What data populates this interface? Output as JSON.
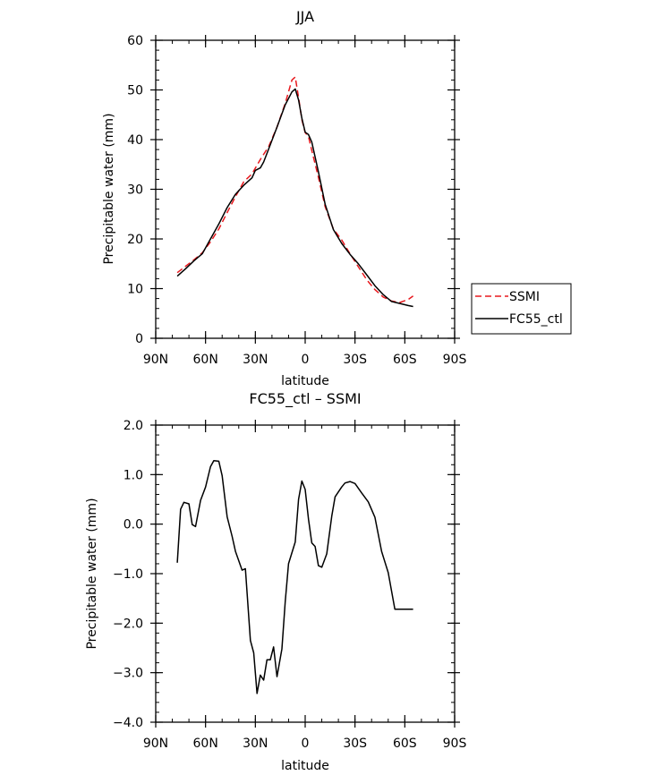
{
  "chart_data": [
    {
      "type": "line",
      "title": "JJA",
      "xlabel": "latitude",
      "ylabel": "Precipitable water (mm)",
      "xlim": [
        90,
        -90
      ],
      "ylim": [
        0,
        60
      ],
      "xticks": [
        90,
        60,
        30,
        0,
        -30,
        -60,
        -90
      ],
      "xtick_labels": [
        "90N",
        "60N",
        "30N",
        "0",
        "30S",
        "60S",
        "90S"
      ],
      "yticks": [
        0,
        10,
        20,
        30,
        40,
        50,
        60
      ],
      "ytick_labels": [
        "0",
        "10",
        "20",
        "30",
        "40",
        "50",
        "60"
      ],
      "grid": false,
      "legend_position": "right",
      "series": [
        {
          "name": "SSMI",
          "color": "#e8191e",
          "dash": "dashed",
          "x": [
            77,
            72,
            67,
            62,
            57,
            52,
            47,
            42,
            37,
            32,
            27,
            22,
            17,
            12,
            8,
            6,
            4,
            2,
            0,
            -2,
            -4,
            -8,
            -12,
            -17,
            -22,
            -27,
            -32,
            -37,
            -42,
            -47,
            -52,
            -57,
            -62,
            -65
          ],
          "y": [
            13.2,
            14.5,
            15.8,
            17.2,
            19.4,
            22.0,
            25.3,
            28.5,
            31.5,
            33.1,
            36.0,
            38.6,
            42.5,
            47.3,
            52.0,
            52.6,
            48.5,
            44.0,
            41.4,
            40.6,
            37.8,
            32.4,
            26.5,
            22.0,
            19.8,
            17.0,
            14.4,
            11.8,
            9.8,
            8.3,
            7.5,
            7.2,
            7.8,
            8.5
          ]
        },
        {
          "name": "FC55_ctl",
          "color": "#000000",
          "dash": "solid",
          "x": [
            77,
            72,
            67,
            62,
            57,
            52,
            47,
            42,
            37,
            32,
            30,
            27,
            25,
            22,
            17,
            12,
            8,
            6,
            4,
            2,
            0,
            -2,
            -4,
            -8,
            -12,
            -17,
            -22,
            -27,
            -32,
            -37,
            -42,
            -47,
            -52,
            -57,
            -62,
            -65
          ],
          "y": [
            12.5,
            14.0,
            15.6,
            17.0,
            20.0,
            23.0,
            26.3,
            29.0,
            30.8,
            32.3,
            33.8,
            34.3,
            35.5,
            38.1,
            42.5,
            47.0,
            49.6,
            50.2,
            48.0,
            44.3,
            41.5,
            41.0,
            39.5,
            33.5,
            27.0,
            21.9,
            19.1,
            16.9,
            15.0,
            12.8,
            10.6,
            8.8,
            7.4,
            7.0,
            6.6,
            6.4
          ]
        }
      ]
    },
    {
      "type": "line",
      "title": "FC55_ctl – SSMI",
      "xlabel": "latitude",
      "ylabel": "Precipitable water (mm)",
      "xlim": [
        90,
        -90
      ],
      "ylim": [
        -4,
        2
      ],
      "xticks": [
        90,
        60,
        30,
        0,
        -30,
        -60,
        -90
      ],
      "xtick_labels": [
        "90N",
        "60N",
        "30N",
        "0",
        "30S",
        "60S",
        "90S"
      ],
      "yticks": [
        -4,
        -3,
        -2,
        -1,
        0,
        1,
        2
      ],
      "ytick_labels": [
        "−4.0",
        "−3.0",
        "−2.0",
        "−1.0",
        "0.0",
        "1.0",
        "2.0"
      ],
      "grid": false,
      "series": [
        {
          "color": "#000000",
          "dash": "solid",
          "x": [
            77,
            75,
            73,
            70,
            68,
            66,
            63,
            60,
            57,
            55,
            52,
            50,
            47,
            44,
            42,
            38,
            36,
            33,
            31,
            29,
            27,
            25,
            23,
            21,
            19,
            17,
            14,
            12,
            10,
            6,
            4,
            2,
            0,
            -2,
            -4,
            -6,
            -8,
            -10,
            -13,
            -16,
            -18,
            -22,
            -24,
            -27,
            -30,
            -34,
            -38,
            -42,
            -46,
            -50,
            -54,
            -58,
            -62,
            -65
          ],
          "y": [
            -0.78,
            0.3,
            0.44,
            0.41,
            -0.01,
            -0.05,
            0.48,
            0.75,
            1.16,
            1.28,
            1.27,
            0.98,
            0.15,
            -0.25,
            -0.55,
            -0.93,
            -0.9,
            -2.35,
            -2.6,
            -3.42,
            -3.05,
            -3.15,
            -2.74,
            -2.74,
            -2.48,
            -3.08,
            -2.52,
            -1.57,
            -0.8,
            -0.36,
            0.5,
            0.87,
            0.7,
            0.1,
            -0.38,
            -0.45,
            -0.84,
            -0.87,
            -0.6,
            0.16,
            0.55,
            0.75,
            0.83,
            0.86,
            0.82,
            0.63,
            0.45,
            0.14,
            -0.55,
            -0.98,
            -1.72,
            -1.72,
            -1.72,
            -1.72
          ]
        }
      ]
    }
  ]
}
